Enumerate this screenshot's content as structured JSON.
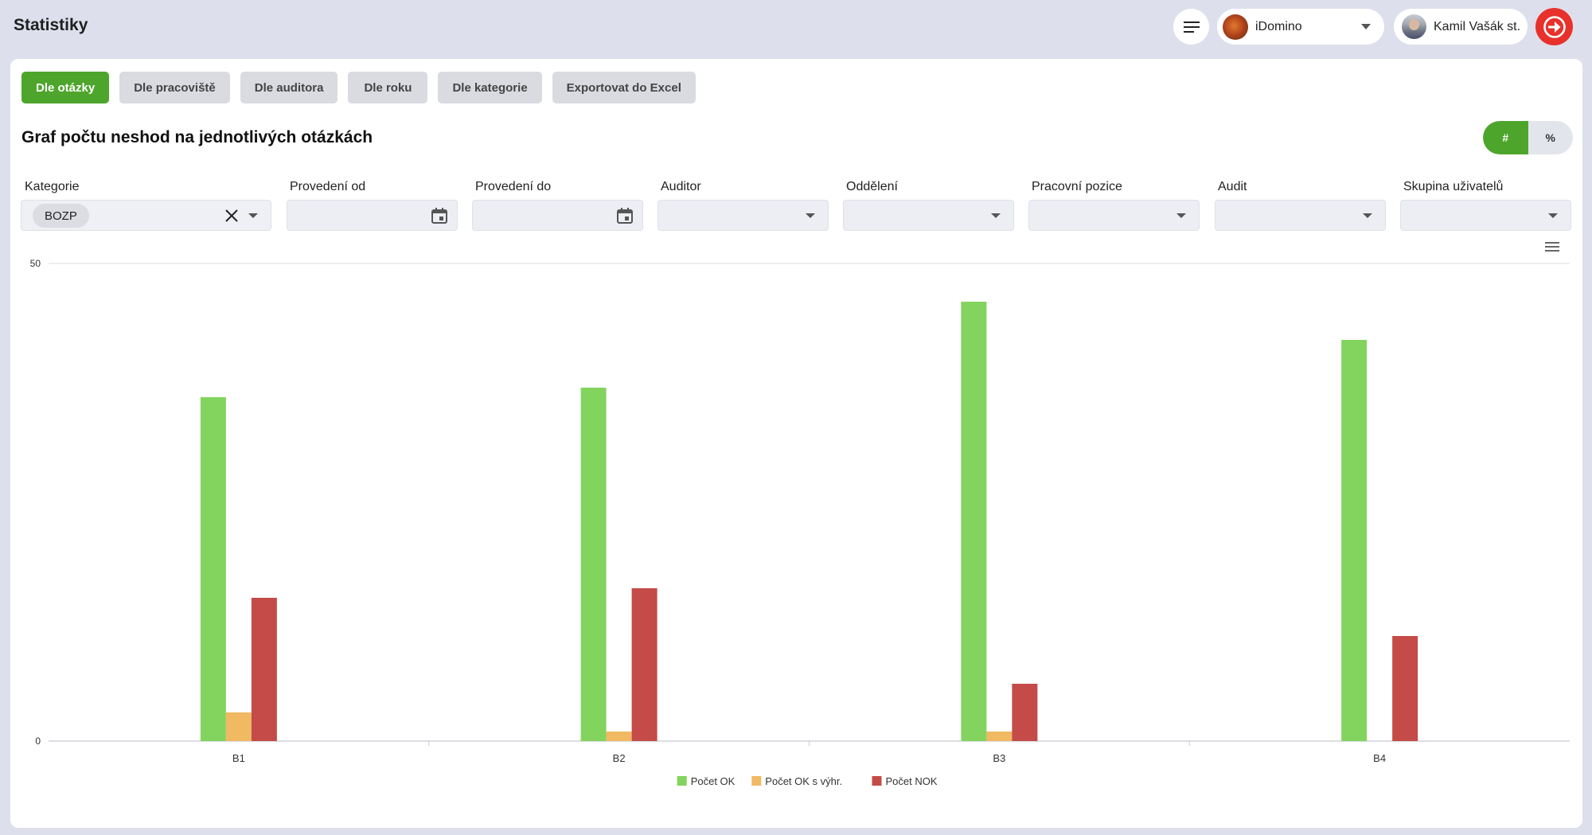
{
  "app": {
    "title": "Statistiky",
    "org_label": "iDomino",
    "user_name": "Kamil Vašák st."
  },
  "tabs": [
    {
      "label": "Dle otázky",
      "active": true
    },
    {
      "label": "Dle pracoviště",
      "active": false
    },
    {
      "label": "Dle auditora",
      "active": false
    },
    {
      "label": "Dle roku",
      "active": false
    },
    {
      "label": "Dle kategorie",
      "active": false
    },
    {
      "label": "Exportovat do Excel",
      "active": false
    }
  ],
  "chart_title": "Graf počtu neshod na jednotlivých otázkách",
  "toggle": {
    "count_label": "#",
    "percent_label": "%",
    "selected": "#"
  },
  "filters": {
    "category": {
      "label": "Kategorie",
      "value": "BOZP"
    },
    "date_from": {
      "label": "Provedení od",
      "value": ""
    },
    "date_to": {
      "label": "Provedení do",
      "value": ""
    },
    "auditor": {
      "label": "Auditor",
      "value": ""
    },
    "department": {
      "label": "Oddělení",
      "value": ""
    },
    "position": {
      "label": "Pracovní pozice",
      "value": ""
    },
    "audit": {
      "label": "Audit",
      "value": ""
    },
    "user_group": {
      "label": "Skupina uživatelů",
      "value": ""
    }
  },
  "colors": {
    "accent": "#4ea52c",
    "logout": "#e8312b",
    "background": "#dde0ec"
  },
  "icons": [
    "menu-icon",
    "chevron-down-icon",
    "logout-arrow-icon",
    "calendar-icon",
    "close-icon",
    "chart-menu-icon"
  ],
  "chart_data": {
    "type": "bar",
    "categories": [
      "B1",
      "B2",
      "B3",
      "B4"
    ],
    "series": [
      {
        "name": "Počet OK",
        "color": "#83d45e",
        "values": [
          36,
          37,
          46,
          42
        ]
      },
      {
        "name": "Počet OK s výhr.",
        "color": "#f0b962",
        "values": [
          3,
          1,
          1,
          0
        ]
      },
      {
        "name": "Počet NOK",
        "color": "#c44b47",
        "values": [
          15,
          16,
          6,
          11
        ]
      }
    ],
    "ylim": [
      0,
      50
    ],
    "yticks": [
      0,
      50
    ],
    "grid": true,
    "legend": "bottom"
  }
}
